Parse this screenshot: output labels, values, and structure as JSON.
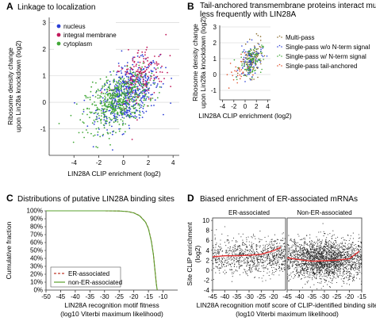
{
  "panels": [
    {
      "id": "A",
      "letter": "A",
      "title": [
        "Linkage to localization"
      ],
      "chart_data": {
        "type": "scatter",
        "xlabel": "LIN28A CLIP enrichment (log2)",
        "ylabel": [
          "Ribosome density change",
          "upon Lin28a knockdown (log2)"
        ],
        "xlim": [
          -6,
          4.5
        ],
        "ylim": [
          -2,
          3.2
        ],
        "xticks": [
          -4,
          -2,
          0,
          2,
          4
        ],
        "yticks": [
          -1,
          0,
          1,
          2,
          3
        ],
        "grid": "horizontal",
        "legend_position": "top-left",
        "series": [
          {
            "name": "nucleus",
            "color": "#2b3fd6",
            "n": 520,
            "cx": 0.4,
            "cy": 0.3,
            "sx": 1.25,
            "sy": 0.6,
            "rho": 0.45
          },
          {
            "name": "integral membrane",
            "color": "#c2185b",
            "n": 170,
            "cx": 1.3,
            "cy": 0.95,
            "sx": 1.05,
            "sy": 0.6,
            "rho": 0.4
          },
          {
            "name": "cytoplasm",
            "color": "#43a838",
            "n": 520,
            "cx": -0.5,
            "cy": 0.05,
            "sx": 1.25,
            "sy": 0.55,
            "rho": 0.45
          }
        ]
      }
    },
    {
      "id": "B",
      "letter": "B",
      "title": [
        "Tail-anchored transmembrane proteins interact much",
        "less frequently with LIN28A"
      ],
      "chart_data": {
        "type": "scatter",
        "xlabel": "LIN28A CLIP enrichment (log2)",
        "ylabel": [
          "Ribosome density change",
          "upon Lin28a knockdown (log2)"
        ],
        "xlim": [
          -4.5,
          4.5
        ],
        "ylim": [
          -1.6,
          3.1
        ],
        "xticks": [
          -4,
          -2,
          0,
          2,
          4
        ],
        "yticks": [
          -1,
          0,
          1,
          2,
          3
        ],
        "grid": "horizontal",
        "legend_position": "right",
        "series": [
          {
            "name": "Multi-pass",
            "color": "#8a6a2a",
            "n": 110,
            "cx": 1.2,
            "cy": 0.9,
            "sx": 0.95,
            "sy": 0.55,
            "rho": 0.35
          },
          {
            "name": "Single-pass w/o N-term signal",
            "color": "#2b3fd6",
            "n": 90,
            "cx": 0.9,
            "cy": 0.8,
            "sx": 1.0,
            "sy": 0.55,
            "rho": 0.35
          },
          {
            "name": "Single-pass w/ N-term signal",
            "color": "#43a838",
            "n": 90,
            "cx": 1.1,
            "cy": 0.85,
            "sx": 1.0,
            "sy": 0.5,
            "rho": 0.35
          },
          {
            "name": "Single-pass tail-anchored",
            "color": "#e0502a",
            "n": 28,
            "cx": -1.4,
            "cy": 0.2,
            "sx": 1.0,
            "sy": 0.5,
            "rho": 0.2
          }
        ]
      }
    },
    {
      "id": "C",
      "letter": "C",
      "title": [
        "Distributions of putative LIN28A binding sites"
      ],
      "chart_data": {
        "type": "line",
        "xlabel": [
          "LIN28A recognition motif fitness",
          "(log10 Viterbi maximum likelihood)"
        ],
        "ylabel": "Cumulative fraction",
        "xlim": [
          -50,
          -5
        ],
        "ylim": [
          0,
          1.0
        ],
        "xticks": [
          -50,
          -45,
          -40,
          -35,
          -30,
          -25,
          -20,
          -15,
          -10
        ],
        "yticklabels": [
          "0%",
          "10%",
          "20%",
          "30%",
          "40%",
          "50%",
          "60%",
          "70%",
          "80%",
          "90%",
          "100%"
        ],
        "legend_position": "bottom-left",
        "series": [
          {
            "name": "ER-associated",
            "color": "#c0392b",
            "dash": true,
            "x": [
              -50,
              -30,
              -25,
              -22,
              -20,
              -18,
              -16,
              -15,
              -14,
              -13.3,
              -12.8,
              -12.3,
              -12
            ],
            "y": [
              1.0,
              1.0,
              0.998,
              0.99,
              0.975,
              0.94,
              0.86,
              0.78,
              0.62,
              0.45,
              0.27,
              0.08,
              0.0
            ]
          },
          {
            "name": "non-ER-associated",
            "color": "#5aa02c",
            "dash": false,
            "x": [
              -50,
              -30,
              -25,
              -22,
              -20,
              -18,
              -16,
              -15,
              -14,
              -13.3,
              -12.8,
              -12.3,
              -12
            ],
            "y": [
              1.0,
              1.0,
              0.998,
              0.99,
              0.974,
              0.938,
              0.858,
              0.775,
              0.615,
              0.445,
              0.265,
              0.075,
              0.0
            ]
          }
        ]
      }
    },
    {
      "id": "D",
      "letter": "D",
      "title": [
        "Biased enrichment of ER-associated mRNAs"
      ],
      "chart_data": {
        "type": "scatter",
        "ylabel": [
          "Site CLIP enrichment",
          "(log2)"
        ],
        "xlabel": [
          "LIN28A recognition motif score of CLIP-identified binding site",
          "(log10 Viterbi maximum likelihood)"
        ],
        "ylim": [
          -4,
          10.5
        ],
        "yticks": [
          -4,
          -2,
          0,
          2,
          4,
          6,
          8,
          10
        ],
        "subplots": [
          {
            "title": "ER-associated",
            "xlim": [
              -45,
              -15
            ],
            "xticks": [
              -45,
              -40,
              -35,
              -30,
              -25,
              -20
            ],
            "n": 900,
            "trend_x": [
              -45,
              -40,
              -35,
              -30,
              -25,
              -20,
              -17
            ],
            "trend_y": [
              2.7,
              2.9,
              2.9,
              3.0,
              3.2,
              3.9,
              4.6
            ]
          },
          {
            "title": "Non-ER-associated",
            "xlim": [
              -45,
              -15
            ],
            "xticks": [
              -45,
              -40,
              -35,
              -30,
              -25,
              -20,
              -15
            ],
            "n": 2200,
            "trend_x": [
              -45,
              -40,
              -35,
              -30,
              -25,
              -20,
              -16
            ],
            "trend_y": [
              2.5,
              2.1,
              1.8,
              1.9,
              2.0,
              2.3,
              3.8
            ]
          }
        ]
      }
    }
  ]
}
